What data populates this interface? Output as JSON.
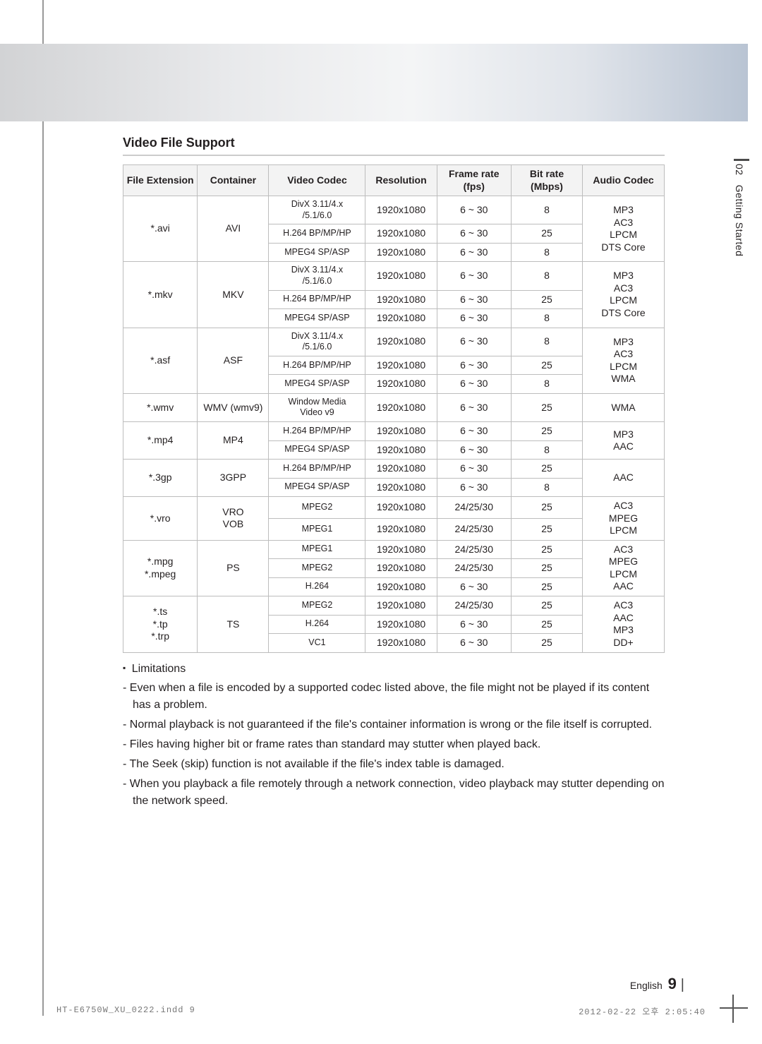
{
  "side": {
    "chapter": "02",
    "label": "Getting Started"
  },
  "section_title": "Video File Support",
  "table": {
    "headers": [
      "File Extension",
      "Container",
      "Video Codec",
      "Resolution",
      "Frame rate\n(fps)",
      "Bit rate\n(Mbps)",
      "Audio Codec"
    ],
    "groups": [
      {
        "ext": "*.avi",
        "container": "AVI",
        "rows": [
          {
            "codec": "DivX 3.11/4.x\n/5.1/6.0",
            "res": "1920x1080",
            "fps": "6 ~ 30",
            "bit": "8"
          },
          {
            "codec": "H.264 BP/MP/HP",
            "res": "1920x1080",
            "fps": "6 ~ 30",
            "bit": "25"
          },
          {
            "codec": "MPEG4 SP/ASP",
            "res": "1920x1080",
            "fps": "6 ~ 30",
            "bit": "8"
          }
        ],
        "audio": "MP3\nAC3\nLPCM\nDTS Core"
      },
      {
        "ext": "*.mkv",
        "container": "MKV",
        "rows": [
          {
            "codec": "DivX 3.11/4.x\n/5.1/6.0",
            "res": "1920x1080",
            "fps": "6 ~ 30",
            "bit": "8"
          },
          {
            "codec": "H.264 BP/MP/HP",
            "res": "1920x1080",
            "fps": "6 ~ 30",
            "bit": "25"
          },
          {
            "codec": "MPEG4 SP/ASP",
            "res": "1920x1080",
            "fps": "6 ~ 30",
            "bit": "8"
          }
        ],
        "audio": "MP3\nAC3\nLPCM\nDTS Core"
      },
      {
        "ext": "*.asf",
        "container": "ASF",
        "rows": [
          {
            "codec": "DivX 3.11/4.x\n/5.1/6.0",
            "res": "1920x1080",
            "fps": "6 ~ 30",
            "bit": "8"
          },
          {
            "codec": "H.264 BP/MP/HP",
            "res": "1920x1080",
            "fps": "6 ~ 30",
            "bit": "25"
          },
          {
            "codec": "MPEG4 SP/ASP",
            "res": "1920x1080",
            "fps": "6 ~ 30",
            "bit": "8"
          }
        ],
        "audio": "MP3\nAC3\nLPCM\nWMA"
      },
      {
        "ext": "*.wmv",
        "container": "WMV (wmv9)",
        "rows": [
          {
            "codec": "Window Media\nVideo v9",
            "res": "1920x1080",
            "fps": "6 ~ 30",
            "bit": "25"
          }
        ],
        "audio": "WMA"
      },
      {
        "ext": "*.mp4",
        "container": "MP4",
        "rows": [
          {
            "codec": "H.264 BP/MP/HP",
            "res": "1920x1080",
            "fps": "6 ~ 30",
            "bit": "25"
          },
          {
            "codec": "MPEG4 SP/ASP",
            "res": "1920x1080",
            "fps": "6 ~ 30",
            "bit": "8"
          }
        ],
        "audio": "MP3\nAAC"
      },
      {
        "ext": "*.3gp",
        "container": "3GPP",
        "rows": [
          {
            "codec": "H.264 BP/MP/HP",
            "res": "1920x1080",
            "fps": "6 ~ 30",
            "bit": "25"
          },
          {
            "codec": "MPEG4 SP/ASP",
            "res": "1920x1080",
            "fps": "6 ~ 30",
            "bit": "8"
          }
        ],
        "audio": "AAC"
      },
      {
        "ext": "*.vro",
        "container": "VRO\nVOB",
        "rows": [
          {
            "codec": "MPEG2",
            "res": "1920x1080",
            "fps": "24/25/30",
            "bit": "25"
          },
          {
            "codec": "MPEG1",
            "res": "1920x1080",
            "fps": "24/25/30",
            "bit": "25"
          }
        ],
        "audio": "AC3\nMPEG\nLPCM"
      },
      {
        "ext": "*.mpg\n*.mpeg",
        "container": "PS",
        "rows": [
          {
            "codec": "MPEG1",
            "res": "1920x1080",
            "fps": "24/25/30",
            "bit": "25"
          },
          {
            "codec": "MPEG2",
            "res": "1920x1080",
            "fps": "24/25/30",
            "bit": "25"
          },
          {
            "codec": "H.264",
            "res": "1920x1080",
            "fps": "6 ~ 30",
            "bit": "25"
          }
        ],
        "audio": "AC3\nMPEG\nLPCM\nAAC"
      },
      {
        "ext": "*.ts\n*.tp\n*.trp",
        "container": "TS",
        "rows": [
          {
            "codec": "MPEG2",
            "res": "1920x1080",
            "fps": "24/25/30",
            "bit": "25"
          },
          {
            "codec": "H.264",
            "res": "1920x1080",
            "fps": "6 ~ 30",
            "bit": "25"
          },
          {
            "codec": "VC1",
            "res": "1920x1080",
            "fps": "6 ~ 30",
            "bit": "25"
          }
        ],
        "audio": "AC3\nAAC\nMP3\nDD+"
      }
    ]
  },
  "limitations": {
    "title": "Limitations",
    "items": [
      "Even when a file is encoded by a supported codec listed above, the file might not be played if its content has a problem.",
      "Normal playback is not guaranteed if the file's container information is wrong or the file itself is corrupted.",
      "Files having higher bit or frame rates than standard may stutter when played back.",
      "The Seek (skip) function is not available if the file's index table is damaged.",
      "When you playback a file remotely through a network connection, video playback may stutter depending on the network speed."
    ]
  },
  "footer": {
    "lang": "English",
    "page": "9"
  },
  "print": {
    "left": "HT-E6750W_XU_0222.indd   9",
    "right": "2012-02-22   오후 2:05:40"
  }
}
